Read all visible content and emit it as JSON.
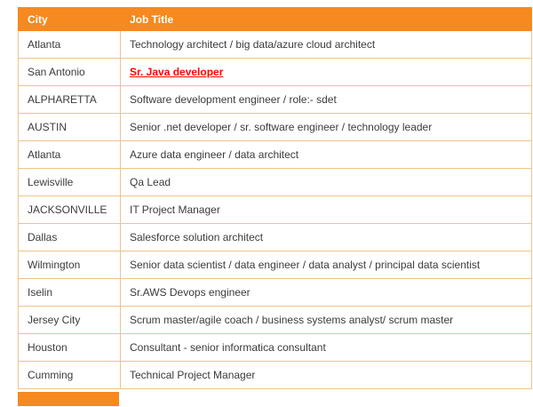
{
  "colors": {
    "header_bg": "#F6891F",
    "header_text": "#FFFFFF",
    "border": "#F0C28C",
    "body_text": "#3B3B3B",
    "link": "#FF0000"
  },
  "table": {
    "headers": {
      "city": "City",
      "job_title": "Job Title"
    },
    "rows": [
      {
        "city": "Atlanta",
        "job_title": "Technology architect / big data/azure cloud architect"
      },
      {
        "city": "San Antonio",
        "job_title": "Sr. Java developer"
      },
      {
        "city": "ALPHARETTA",
        "job_title": "Software development engineer / role:- sdet"
      },
      {
        "city": "AUSTIN",
        "job_title": "Senior .net developer / sr. software engineer / technology leader"
      },
      {
        "city": "Atlanta",
        "job_title": "Azure data engineer / data architect"
      },
      {
        "city": "Lewisville",
        "job_title": "Qa Lead"
      },
      {
        "city": "JACKSONVILLE",
        "job_title": "IT Project Manager"
      },
      {
        "city": "Dallas",
        "job_title": "Salesforce solution architect"
      },
      {
        "city": "Wilmington",
        "job_title": "Senior data scientist / data engineer / data analyst / principal data scientist"
      },
      {
        "city": "Iselin",
        "job_title": "Sr.AWS Devops engineer"
      },
      {
        "city": "Jersey City",
        "job_title": "Scrum master/agile coach / business systems analyst/ scrum master"
      },
      {
        "city": "Houston",
        "job_title": "Consultant - senior informatica consultant"
      },
      {
        "city": "Cumming",
        "job_title": "Technical Project Manager"
      }
    ],
    "link_row_index": 1
  },
  "chart_data": {
    "type": "table",
    "columns": [
      "City",
      "Job Title"
    ],
    "rows": [
      [
        "Atlanta",
        "Technology architect / big data/azure cloud architect"
      ],
      [
        "San Antonio",
        "Sr. Java developer"
      ],
      [
        "ALPHARETTA",
        "Software development engineer / role:- sdet"
      ],
      [
        "AUSTIN",
        "Senior .net developer / sr. software engineer / technology leader"
      ],
      [
        "Atlanta",
        "Azure data engineer / data architect"
      ],
      [
        "Lewisville",
        "Qa Lead"
      ],
      [
        "JACKSONVILLE",
        "IT Project Manager"
      ],
      [
        "Dallas",
        "Salesforce solution architect"
      ],
      [
        "Wilmington",
        "Senior data scientist / data engineer / data analyst / principal data scientist"
      ],
      [
        "Iselin",
        "Sr.AWS Devops engineer"
      ],
      [
        "Jersey City",
        "Scrum master/agile coach / business systems analyst/ scrum master"
      ],
      [
        "Houston",
        "Consultant - senior informatica consultant"
      ],
      [
        "Cumming",
        "Technical Project Manager"
      ]
    ]
  }
}
